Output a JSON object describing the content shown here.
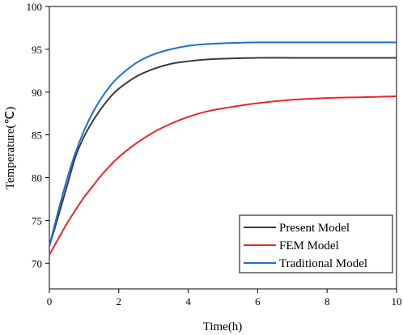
{
  "chart_data": {
    "type": "line",
    "xlabel": "Time(h)",
    "ylabel": "Temperature(℃)",
    "xlim": [
      0,
      10
    ],
    "ylim": [
      67,
      100
    ],
    "xticks": [
      0,
      2,
      4,
      6,
      8,
      10
    ],
    "yticks": [
      70,
      75,
      80,
      85,
      90,
      95,
      100
    ],
    "xtick_labels": [
      "0",
      "2",
      "4",
      "6",
      "8",
      "10"
    ],
    "ytick_labels": [
      "70",
      "75",
      "80",
      "85",
      "90",
      "95",
      "100"
    ],
    "grid": false,
    "legend_position": "bottom-right",
    "series": [
      {
        "name": "Present Model",
        "color": "#3a3a3a",
        "x": [
          0,
          0.25,
          0.5,
          0.75,
          1,
          1.25,
          1.5,
          1.75,
          2,
          2.5,
          3,
          3.5,
          4,
          4.5,
          5,
          6,
          7,
          8,
          9,
          10
        ],
        "y": [
          72.0,
          75.4,
          78.9,
          82.4,
          84.8,
          86.6,
          88.1,
          89.4,
          90.4,
          91.8,
          92.7,
          93.3,
          93.6,
          93.8,
          93.9,
          94.0,
          94.0,
          94.0,
          94.0,
          94.0
        ]
      },
      {
        "name": "FEM Model",
        "color": "#e8262a",
        "x": [
          0,
          0.25,
          0.5,
          0.75,
          1,
          1.25,
          1.5,
          1.75,
          2,
          2.5,
          3,
          3.5,
          4,
          4.5,
          5,
          6,
          7,
          8,
          9,
          10
        ],
        "y": [
          71.0,
          72.8,
          74.6,
          76.2,
          77.7,
          79.0,
          80.3,
          81.4,
          82.4,
          84.0,
          85.3,
          86.3,
          87.1,
          87.7,
          88.1,
          88.7,
          89.1,
          89.3,
          89.4,
          89.5
        ]
      },
      {
        "name": "Traditional Model",
        "color": "#1b6fd0",
        "x": [
          0,
          0.25,
          0.5,
          0.75,
          1,
          1.25,
          1.5,
          1.75,
          2,
          2.5,
          3,
          3.5,
          4,
          4.5,
          5,
          6,
          7,
          8,
          9,
          10
        ],
        "y": [
          72.0,
          76.0,
          79.7,
          82.9,
          85.5,
          87.6,
          89.3,
          90.7,
          91.8,
          93.4,
          94.4,
          95.0,
          95.4,
          95.6,
          95.7,
          95.8,
          95.8,
          95.8,
          95.8,
          95.8
        ]
      }
    ]
  }
}
